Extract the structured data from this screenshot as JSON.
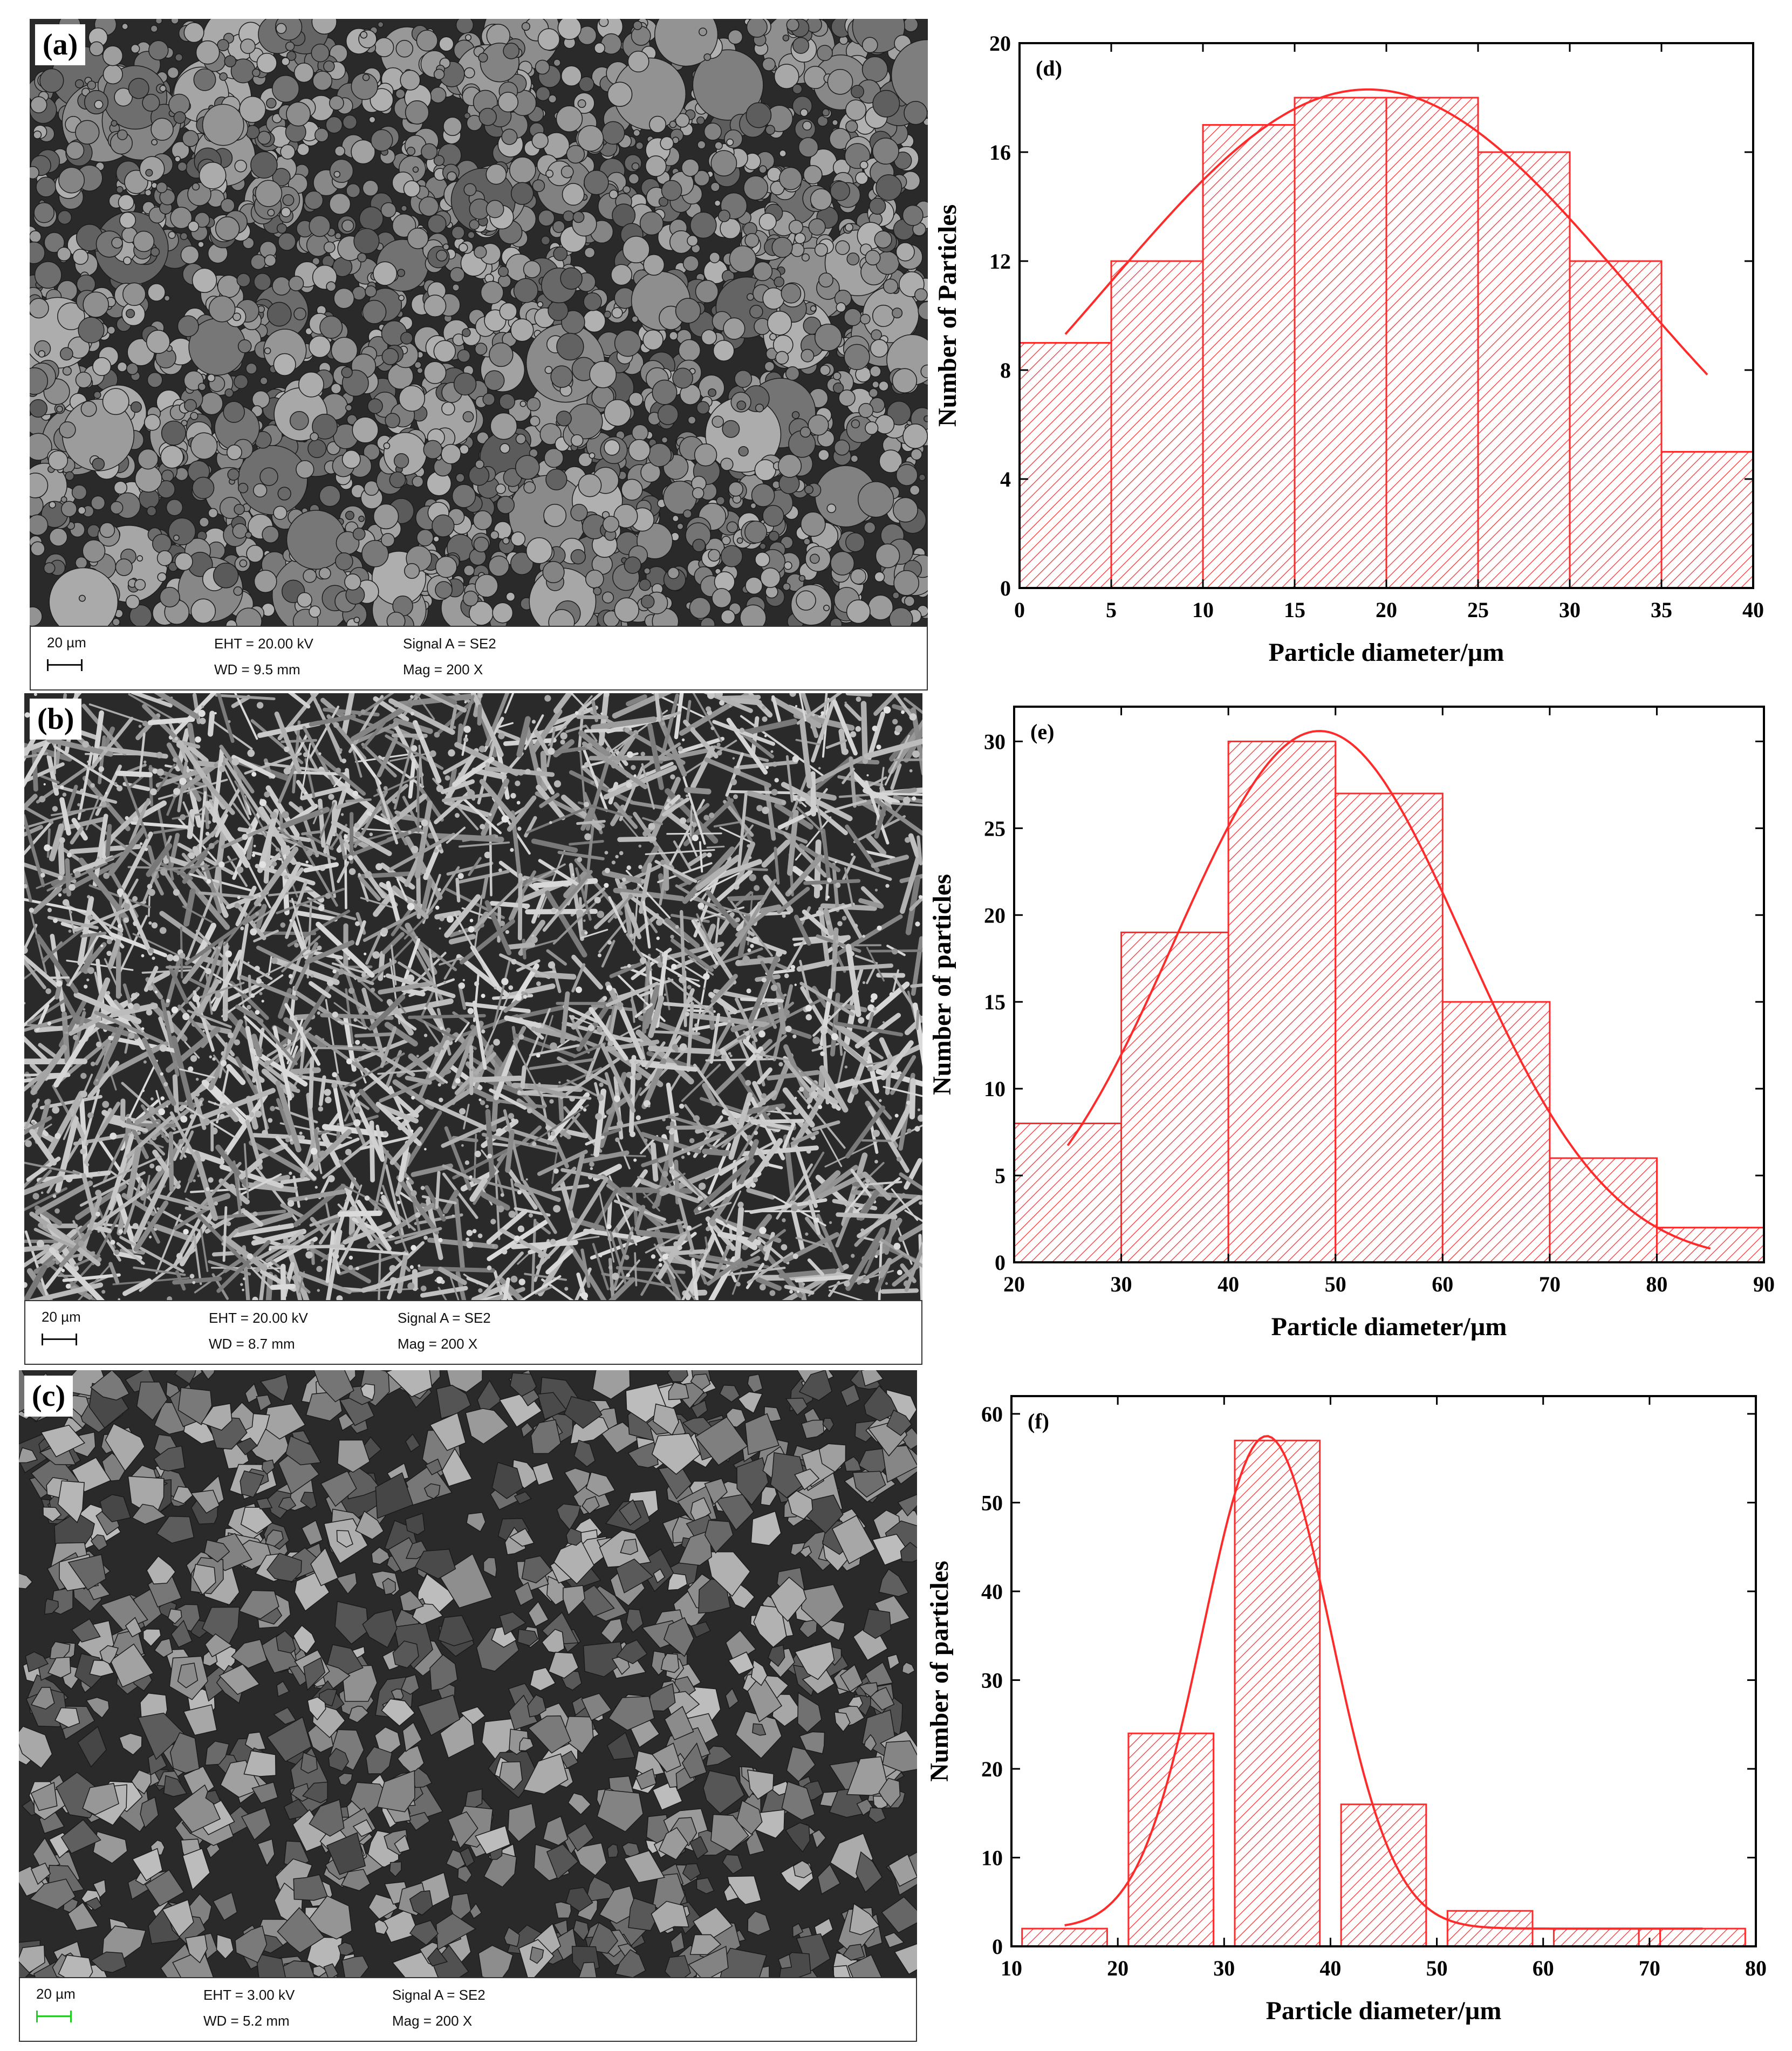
{
  "sem_panels": [
    {
      "id": "a",
      "label": "(a)",
      "scale": "20 µm",
      "eht": "EHT = 20.00 kV",
      "wd": "WD = 9.5 mm",
      "signal": "Signal A = SE2",
      "mag": "Mag =   200 X",
      "texture": "spheres",
      "scale_color": "#111111"
    },
    {
      "id": "b",
      "label": "(b)",
      "scale": "20 µm",
      "eht": "EHT = 20.00 kV",
      "wd": "WD = 8.7 mm",
      "signal": "Signal A = SE2",
      "mag": "Mag =   200 X",
      "texture": "dendrites",
      "scale_color": "#111111"
    },
    {
      "id": "c",
      "label": "(c)",
      "scale": "20 µm",
      "eht": "EHT = 3.00 kV",
      "wd": "WD = 5.2 mm",
      "signal": "Signal A = SE2",
      "mag": "Mag =   200 X",
      "texture": "shards",
      "scale_color": "#22cc22"
    }
  ],
  "chart_data": [
    {
      "type": "bar",
      "panel_label": "(d)",
      "bins": [
        [
          0,
          5
        ],
        [
          5,
          10
        ],
        [
          10,
          15
        ],
        [
          15,
          20
        ],
        [
          20,
          25
        ],
        [
          25,
          30
        ],
        [
          30,
          35
        ],
        [
          35,
          40
        ]
      ],
      "values": [
        9,
        12,
        17,
        18,
        18,
        16,
        12,
        5
      ],
      "fit": {
        "type": "normal",
        "mean": 19,
        "sd": 14.2,
        "peak": 18.3,
        "x_range": [
          2.5,
          37.5
        ]
      },
      "xlabel": "Particle diameter/µm",
      "ylabel": "Number of Particles",
      "xlim": [
        0,
        40
      ],
      "ylim": [
        0,
        20
      ],
      "xticks": [
        0,
        5,
        10,
        15,
        20,
        25,
        30,
        35,
        40
      ],
      "yticks": [
        0,
        4,
        8,
        12,
        16,
        20
      ],
      "color": "#ff2a2a"
    },
    {
      "type": "bar",
      "panel_label": "(e)",
      "bins": [
        [
          20,
          30
        ],
        [
          30,
          40
        ],
        [
          40,
          50
        ],
        [
          50,
          60
        ],
        [
          60,
          70
        ],
        [
          70,
          80
        ],
        [
          80,
          90
        ]
      ],
      "values": [
        8,
        19,
        30,
        27,
        15,
        6,
        2
      ],
      "fit": {
        "type": "normal",
        "mean": 48.5,
        "sd": 13.5,
        "peak": 30.6,
        "x_range": [
          25,
          85
        ]
      },
      "xlabel": "Particle diameter/µm",
      "ylabel": "Number of particles",
      "xlim": [
        20,
        90
      ],
      "ylim": [
        0,
        32
      ],
      "xticks": [
        20,
        30,
        40,
        50,
        60,
        70,
        80,
        90
      ],
      "yticks": [
        0,
        5,
        10,
        15,
        20,
        25,
        30
      ],
      "color": "#ff2a2a"
    },
    {
      "type": "bar",
      "panel_label": "(f)",
      "bins": [
        [
          11,
          19
        ],
        [
          21,
          29
        ],
        [
          31,
          39
        ],
        [
          41,
          49
        ],
        [
          51,
          59
        ],
        [
          61,
          69
        ],
        [
          69,
          71
        ],
        [
          71,
          79
        ]
      ],
      "values": [
        2,
        24,
        57,
        16,
        4,
        2,
        2,
        2
      ],
      "fit": {
        "type": "normal",
        "mean": 34,
        "sd": 6,
        "peak": 57.5,
        "baseline": 2,
        "x_range": [
          15,
          75
        ]
      },
      "xlabel": "Particle diameter/µm",
      "ylabel": "Number of particles",
      "xlim": [
        10,
        80
      ],
      "ylim": [
        0,
        62
      ],
      "xticks": [
        10,
        20,
        30,
        40,
        50,
        60,
        70,
        80
      ],
      "yticks": [
        0,
        10,
        20,
        30,
        40,
        50,
        60
      ],
      "color": "#ff2a2a"
    }
  ]
}
